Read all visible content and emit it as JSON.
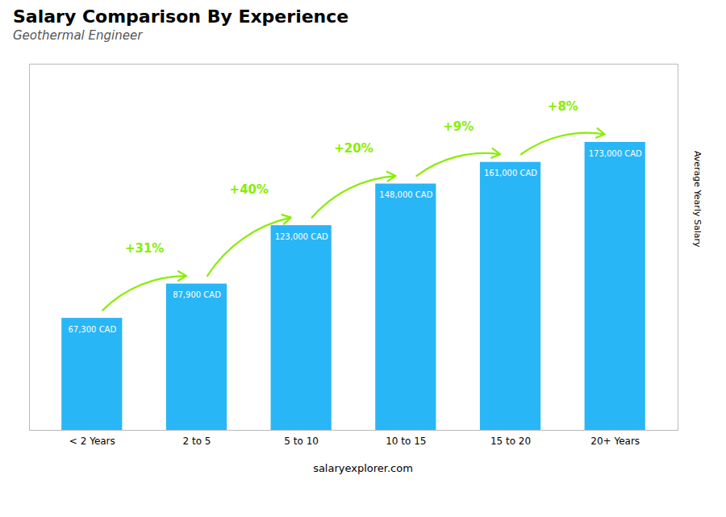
{
  "chart_data": {
    "type": "bar",
    "title": "Salary Comparison By Experience",
    "subtitle": "Geothermal Engineer",
    "categories": [
      "< 2 Years",
      "2 to 5",
      "5 to 10",
      "10 to 15",
      "15 to 20",
      "20+ Years"
    ],
    "values": [
      67300,
      87900,
      123000,
      148000,
      161000,
      173000
    ],
    "value_labels": [
      "67,300 CAD",
      "87,900 CAD",
      "123,000 CAD",
      "148,000 CAD",
      "161,000 CAD",
      "173,000 CAD"
    ],
    "data_labels": true,
    "color": "#29b6f6",
    "ylabel": "Average Yearly Salary",
    "ylim": [
      0,
      220000
    ],
    "tick_labels": "x",
    "grid": false,
    "annotations": [
      {
        "text": "+31%",
        "color": "#88ee00"
      },
      {
        "text": "+40%",
        "color": "#88ee00"
      },
      {
        "text": "+20%",
        "color": "#88ee00"
      },
      {
        "text": "+9%",
        "color": "#88ee00"
      },
      {
        "text": "+8%",
        "color": "#88ee00"
      }
    ],
    "caption": "salaryexplorer.com"
  }
}
